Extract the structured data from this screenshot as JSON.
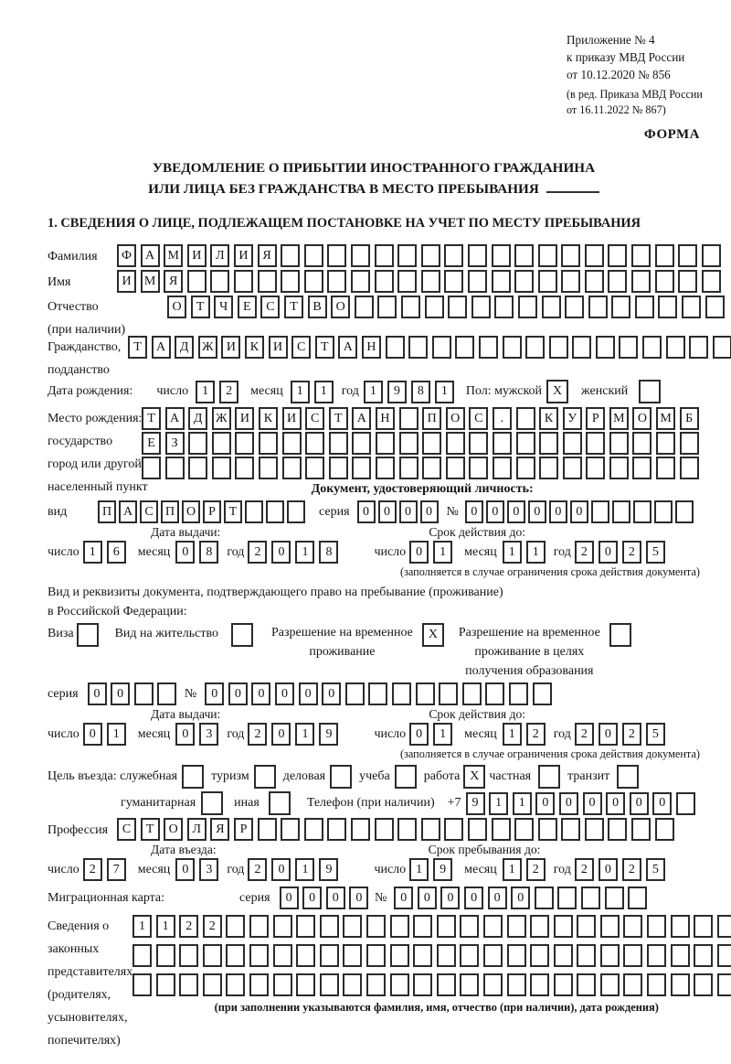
{
  "meta": {
    "appendix": [
      "Приложение № 4",
      "к приказу МВД России",
      "от 10.12.2020 № 856"
    ],
    "revision": [
      "(в ред. Приказа МВД России",
      "от 16.11.2022 № 867)"
    ],
    "form_word": "ФОРМА"
  },
  "title": {
    "line1": "УВЕДОМЛЕНИЕ О ПРИБЫТИИ ИНОСТРАННОГО ГРАЖДАНИНА",
    "line2": "ИЛИ ЛИЦА БЕЗ ГРАЖДАНСТВА В МЕСТО ПРЕБЫВАНИЯ"
  },
  "section1_heading": "1. СВЕДЕНИЯ О ЛИЦЕ, ПОДЛЕЖАЩЕМ ПОСТАНОВКЕ НА УЧЕТ ПО МЕСТУ ПРЕБЫВАНИЯ",
  "date_labels": {
    "day": "число",
    "month": "месяц",
    "year": "год"
  },
  "person": {
    "surname": {
      "label": "Фамилия",
      "grid": {
        "v": "ФАМИЛИЯ",
        "n": 26
      }
    },
    "firstname": {
      "label": "Имя",
      "grid": {
        "v": "ИМЯ",
        "n": 26
      }
    },
    "patronymic": {
      "label": "Отчество",
      "label2": "(при наличии)",
      "grid": {
        "v": "ОТЧЕСТВО",
        "n": 24
      }
    },
    "citizenship": {
      "label": "Гражданство,",
      "label2": "подданство",
      "grid": {
        "v": "ТАДЖИКИСТАН",
        "n": 26
      }
    },
    "birth_date": {
      "label": "Дата рождения:",
      "day": {
        "v": "12",
        "n": 2
      },
      "month": {
        "v": "11",
        "n": 2
      },
      "year": {
        "v": "1981",
        "n": 4
      }
    },
    "sex": {
      "label": "Пол: мужской",
      "male": {
        "v": "X",
        "n": 1
      },
      "female_label": "женский",
      "female": {
        "v": "",
        "n": 1
      }
    },
    "birth_place": {
      "labels": [
        "Место рождения:",
        "государство",
        "город или другой",
        "населенный пункт"
      ],
      "row1": {
        "v": "ТАДЖИКИСТАН ПОС. КУРМОМБ",
        "n": 24
      },
      "row2": {
        "v": "ЕЗ",
        "n": 24
      },
      "row3": {
        "v": "",
        "n": 24
      }
    }
  },
  "identity_doc": {
    "heading": "Документ, удостоверяющий личность:",
    "kind_label": "вид",
    "kind": {
      "v": "ПАСПОРТ",
      "n": 10
    },
    "series_label": "серия",
    "series": {
      "v": "0000",
      "n": 4
    },
    "number_label": "№",
    "number": {
      "v": "000000",
      "n": 11
    },
    "issue_label": "Дата выдачи:",
    "issue_day": {
      "v": "16",
      "n": 2
    },
    "issue_month": {
      "v": "08",
      "n": 2
    },
    "issue_year": {
      "v": "2018",
      "n": 4
    },
    "valid_label": "Срок действия до:",
    "valid_day": {
      "v": "01",
      "n": 2
    },
    "valid_month": {
      "v": "11",
      "n": 2
    },
    "valid_year": {
      "v": "2025",
      "n": 4
    },
    "note": "(заполняется в случае ограничения срока действия документа)"
  },
  "residence_doc": {
    "intro1": "Вид и реквизиты документа, подтверждающего право на пребывание (проживание)",
    "intro2": "в Российской Федерации:",
    "opt_visa": {
      "label": "Виза",
      "box": {
        "v": "",
        "n": 1
      }
    },
    "opt_permit": {
      "label": "Вид на жительство",
      "box": {
        "v": "",
        "n": 1
      }
    },
    "opt_rvp": {
      "line1": "Разрешение на временное",
      "line2": "проживание",
      "box": {
        "v": "X",
        "n": 1
      }
    },
    "opt_rvp_edu": {
      "line1": "Разрешение на временное",
      "line2": "проживание в целях",
      "line3": "получения образования",
      "box": {
        "v": "",
        "n": 1
      }
    },
    "series_label": "серия",
    "series": {
      "v": "00",
      "n": 4
    },
    "number_label": "№",
    "number": {
      "v": "000000",
      "n": 15
    },
    "issue_label": "Дата выдачи:",
    "issue_day": {
      "v": "01",
      "n": 2
    },
    "issue_month": {
      "v": "03",
      "n": 2
    },
    "issue_year": {
      "v": "2019",
      "n": 4
    },
    "valid_label": "Срок действия до:",
    "valid_day": {
      "v": "01",
      "n": 2
    },
    "valid_month": {
      "v": "12",
      "n": 2
    },
    "valid_year": {
      "v": "2025",
      "n": 4
    },
    "note": "(заполняется в случае ограничения срока действия документа)"
  },
  "visit": {
    "p1": {
      "label": "Цель въезда: служебная",
      "box": {
        "v": "",
        "n": 1
      }
    },
    "p2": {
      "label": "туризм",
      "box": {
        "v": "",
        "n": 1
      }
    },
    "p3": {
      "label": "деловая",
      "box": {
        "v": "",
        "n": 1
      }
    },
    "p4": {
      "label": "учеба",
      "box": {
        "v": "",
        "n": 1
      }
    },
    "p5": {
      "label": "работа",
      "box": {
        "v": "X",
        "n": 1
      }
    },
    "p6": {
      "label": "частная",
      "box": {
        "v": "",
        "n": 1
      }
    },
    "p7": {
      "label": "транзит",
      "box": {
        "v": "",
        "n": 1
      }
    },
    "p8": {
      "label": "гуманитарная",
      "box": {
        "v": "",
        "n": 1
      }
    },
    "p9": {
      "label": "иная",
      "box": {
        "v": "",
        "n": 1
      }
    },
    "phone_label": "Телефон (при наличии)",
    "phone_prefix": "+7",
    "phone": {
      "v": "911000000",
      "n": 10
    },
    "profession_label": "Профессия",
    "profession": {
      "v": "СТОЛЯР",
      "n": 24
    },
    "entry_label": "Дата въезда:",
    "entry_day": {
      "v": "27",
      "n": 2
    },
    "entry_month": {
      "v": "03",
      "n": 2
    },
    "entry_year": {
      "v": "2019",
      "n": 4
    },
    "stay_label": "Срок пребывания до:",
    "stay_day": {
      "v": "19",
      "n": 2
    },
    "stay_month": {
      "v": "12",
      "n": 2
    },
    "stay_year": {
      "v": "2025",
      "n": 4
    }
  },
  "migration_card": {
    "label": "Миграционная карта:",
    "series_label": "серия",
    "series": {
      "v": "0000",
      "n": 4
    },
    "number_label": "№",
    "number": {
      "v": "000000",
      "n": 11
    }
  },
  "representatives": {
    "labels": [
      "Сведения о",
      "законных",
      "представителях",
      "(родителях,",
      "усыновителях,",
      "попечителях)"
    ],
    "row1": {
      "v": "1122",
      "n": 26
    },
    "row2": {
      "v": "",
      "n": 26
    },
    "row3": {
      "v": "",
      "n": 26
    },
    "note": "(при заполнении указываются фамилия, имя, отчество (при наличии), дата рождения)"
  }
}
